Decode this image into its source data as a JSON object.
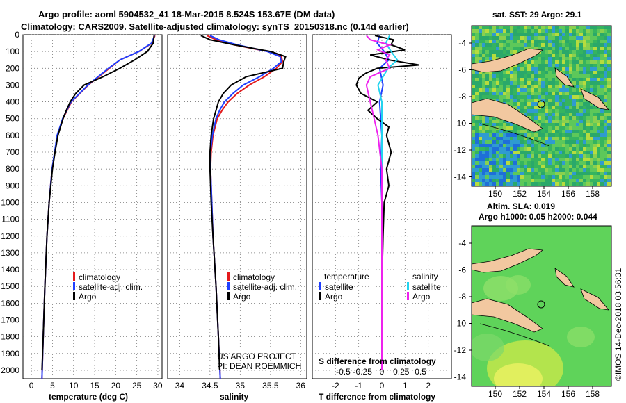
{
  "header": {
    "line1": "Argo profile: aoml 5904532_41 18-Mar-2015 8.524S 153.67E (DM data)",
    "line2": "Climatology: CARS2009. Satellite-adjusted climatology: synTS_20150318.nc (0.14d earlier)"
  },
  "depth_ticks": [
    "0",
    "100",
    "200",
    "300",
    "400",
    "500",
    "600",
    "700",
    "800",
    "900",
    "1000",
    "1100",
    "1200",
    "1300",
    "1400",
    "1500",
    "1600",
    "1700",
    "1800",
    "1900",
    "2000"
  ],
  "colors": {
    "climatology": "#e41a1c",
    "satellite": "#1f3fff",
    "argo": "#000000",
    "cyan": "#22d3ee",
    "magenta": "#ee22ee",
    "land": "#f2c8a0"
  },
  "chart_data": [
    {
      "type": "line",
      "name": "temperature",
      "xlabel": "temperature (deg C)",
      "ylabel": "depth",
      "xlim": [
        -2,
        31
      ],
      "ylim": [
        2050,
        0
      ],
      "xticks": [
        "0",
        "5",
        "10",
        "15",
        "20",
        "25",
        "30"
      ],
      "legend": [
        "climatology",
        "satellite-adj. clim.",
        "Argo"
      ],
      "series": [
        {
          "name": "climatology",
          "depth": [
            5,
            50,
            100,
            150,
            200,
            250,
            300,
            400,
            500,
            600,
            800,
            1000,
            1200,
            1500,
            1800,
            2050
          ],
          "values": [
            29.3,
            28.6,
            25.5,
            21,
            18.5,
            16,
            13.5,
            9.5,
            7.5,
            6.2,
            4.9,
            4.2,
            3.7,
            3.2,
            2.8,
            2.5
          ]
        },
        {
          "name": "satellite-adj. clim.",
          "depth": [
            5,
            50,
            100,
            150,
            200,
            250,
            300,
            400,
            500,
            600,
            800,
            1000,
            1200,
            1500,
            1800,
            2050
          ],
          "values": [
            29.2,
            28.5,
            25.5,
            21,
            18.3,
            15.8,
            13.4,
            9.4,
            7.4,
            6.1,
            4.9,
            4.2,
            3.7,
            3.2,
            2.8,
            2.5
          ]
        },
        {
          "name": "Argo",
          "depth": [
            5,
            50,
            100,
            150,
            200,
            250,
            300,
            350,
            400,
            450,
            500,
            600,
            700,
            800,
            1000,
            1200,
            1500,
            1800,
            2000
          ],
          "values": [
            29.1,
            28.9,
            27.5,
            24.5,
            21,
            17,
            12.5,
            10.5,
            9.2,
            8.3,
            7.5,
            6.3,
            5.6,
            5.0,
            4.2,
            3.7,
            3.2,
            2.8,
            2.5
          ]
        }
      ]
    },
    {
      "type": "line",
      "name": "salinity",
      "xlabel": "salinity",
      "ylabel": "depth",
      "xlim": [
        33.8,
        36.1
      ],
      "ylim": [
        2050,
        0
      ],
      "xticks": [
        "34",
        "34.5",
        "35",
        "35.5",
        "36"
      ],
      "legend": [
        "climatology",
        "satellite-adj. clim.",
        "Argo"
      ],
      "series": [
        {
          "name": "climatology",
          "depth": [
            5,
            30,
            60,
            100,
            130,
            160,
            200,
            250,
            300,
            350,
            400,
            450,
            500,
            600,
            700,
            800,
            1000,
            1200,
            1500,
            1800,
            2050
          ],
          "values": [
            34.45,
            34.6,
            34.9,
            35.45,
            35.68,
            35.7,
            35.6,
            35.4,
            35.15,
            34.95,
            34.8,
            34.7,
            34.62,
            34.55,
            34.52,
            34.51,
            34.53,
            34.55,
            34.6,
            34.64,
            34.67
          ]
        },
        {
          "name": "satellite-adj. clim.",
          "depth": [
            5,
            30,
            60,
            100,
            130,
            160,
            200,
            250,
            300,
            350,
            400,
            450,
            500,
            600,
            700,
            800,
            1000,
            1200,
            1500,
            1800,
            2050
          ],
          "values": [
            34.5,
            34.65,
            34.95,
            35.45,
            35.66,
            35.68,
            35.55,
            35.32,
            35.05,
            34.88,
            34.74,
            34.66,
            34.6,
            34.54,
            34.51,
            34.51,
            34.53,
            34.55,
            34.6,
            34.64,
            34.67
          ]
        },
        {
          "name": "Argo",
          "depth": [
            5,
            30,
            60,
            100,
            130,
            160,
            200,
            250,
            300,
            350,
            400,
            450,
            500,
            600,
            700,
            800,
            1000,
            1200,
            1500,
            1800,
            2000
          ],
          "values": [
            34.35,
            34.5,
            34.9,
            35.5,
            35.75,
            35.72,
            35.7,
            35.1,
            34.85,
            34.72,
            34.64,
            34.6,
            34.56,
            34.52,
            34.5,
            34.5,
            34.52,
            34.55,
            34.6,
            34.64,
            34.66
          ]
        }
      ],
      "annotation": [
        "US ARGO PROJECT",
        "PI: DEAN ROEMMICH"
      ]
    },
    {
      "type": "line",
      "name": "difference",
      "xlabel": "T difference from climatology",
      "x2label": "S difference from climatology",
      "xlim": [
        -3,
        3
      ],
      "ylim": [
        2050,
        0
      ],
      "xticks": [
        "-2",
        "-1",
        "0",
        "1",
        "2"
      ],
      "x2ticks": [
        "-0.5",
        "-0.25",
        "0",
        "0.25",
        "0.5"
      ],
      "legend_left_title": "temperature",
      "legend_right_title": "salinity",
      "legend_left": [
        "satellite",
        "Argo"
      ],
      "legend_right": [
        "satellite",
        "Argo"
      ],
      "series": [
        {
          "name": "temperature satellite",
          "depth": [
            5,
            50,
            100,
            150,
            200,
            300,
            400,
            500,
            600,
            800,
            1000,
            1500,
            2000
          ],
          "values": [
            -0.1,
            -0.2,
            0.1,
            0.3,
            -0.1,
            0.05,
            -0.1,
            -0.05,
            0.0,
            -0.05,
            0.0,
            0.0,
            0.0
          ]
        },
        {
          "name": "temperature Argo",
          "depth": [
            5,
            30,
            60,
            90,
            120,
            150,
            180,
            200,
            230,
            260,
            300,
            350,
            400,
            450,
            500,
            550,
            600,
            700,
            800,
            900,
            1000,
            1200,
            1500,
            1800,
            2000
          ],
          "values": [
            -0.3,
            0.5,
            0.4,
            1.0,
            -0.5,
            0.3,
            1.6,
            -0.2,
            -0.7,
            -1.0,
            -1.1,
            -0.9,
            -0.2,
            -0.6,
            -0.2,
            0.3,
            0.2,
            0.4,
            0.2,
            0.3,
            0.1,
            0.05,
            0.0,
            0.0,
            0.0
          ]
        },
        {
          "name": "salinity satellite",
          "depth": [
            5,
            50,
            100,
            150,
            200,
            300,
            400,
            500,
            700,
            1000,
            1500,
            2000
          ],
          "values": [
            0.1,
            0.05,
            0.12,
            0.2,
            0.08,
            -0.05,
            0.0,
            0.0,
            0.0,
            0.0,
            0.0,
            0.0
          ]
        },
        {
          "name": "salinity Argo",
          "depth": [
            5,
            30,
            60,
            90,
            120,
            150,
            200,
            250,
            300,
            400,
            500,
            600,
            800,
            1000,
            1500,
            2000
          ],
          "values": [
            -0.2,
            -0.15,
            0.1,
            -0.05,
            0.1,
            0.05,
            0.1,
            -0.15,
            -0.2,
            -0.15,
            -0.1,
            -0.05,
            0.0,
            0.0,
            0.0,
            0.0
          ]
        }
      ]
    }
  ],
  "maps": {
    "sst": {
      "title": "sat. SST: 29 Argo: 29.1",
      "yticks": [
        "-4",
        "-6",
        "-8",
        "-10",
        "-12",
        "-14"
      ],
      "xticks": [
        "150",
        "152",
        "154",
        "156",
        "158"
      ]
    },
    "sla": {
      "title1": "Altim. SLA: 0.019",
      "title2": "Argo h1000: 0.05 h2000: 0.044",
      "yticks": [
        "-4",
        "-6",
        "-8",
        "-10",
        "-12",
        "-14"
      ],
      "xticks": [
        "150",
        "152",
        "154",
        "156",
        "158"
      ]
    }
  },
  "watermark": "©IMOS 14-Dec-2018 03:56:31"
}
